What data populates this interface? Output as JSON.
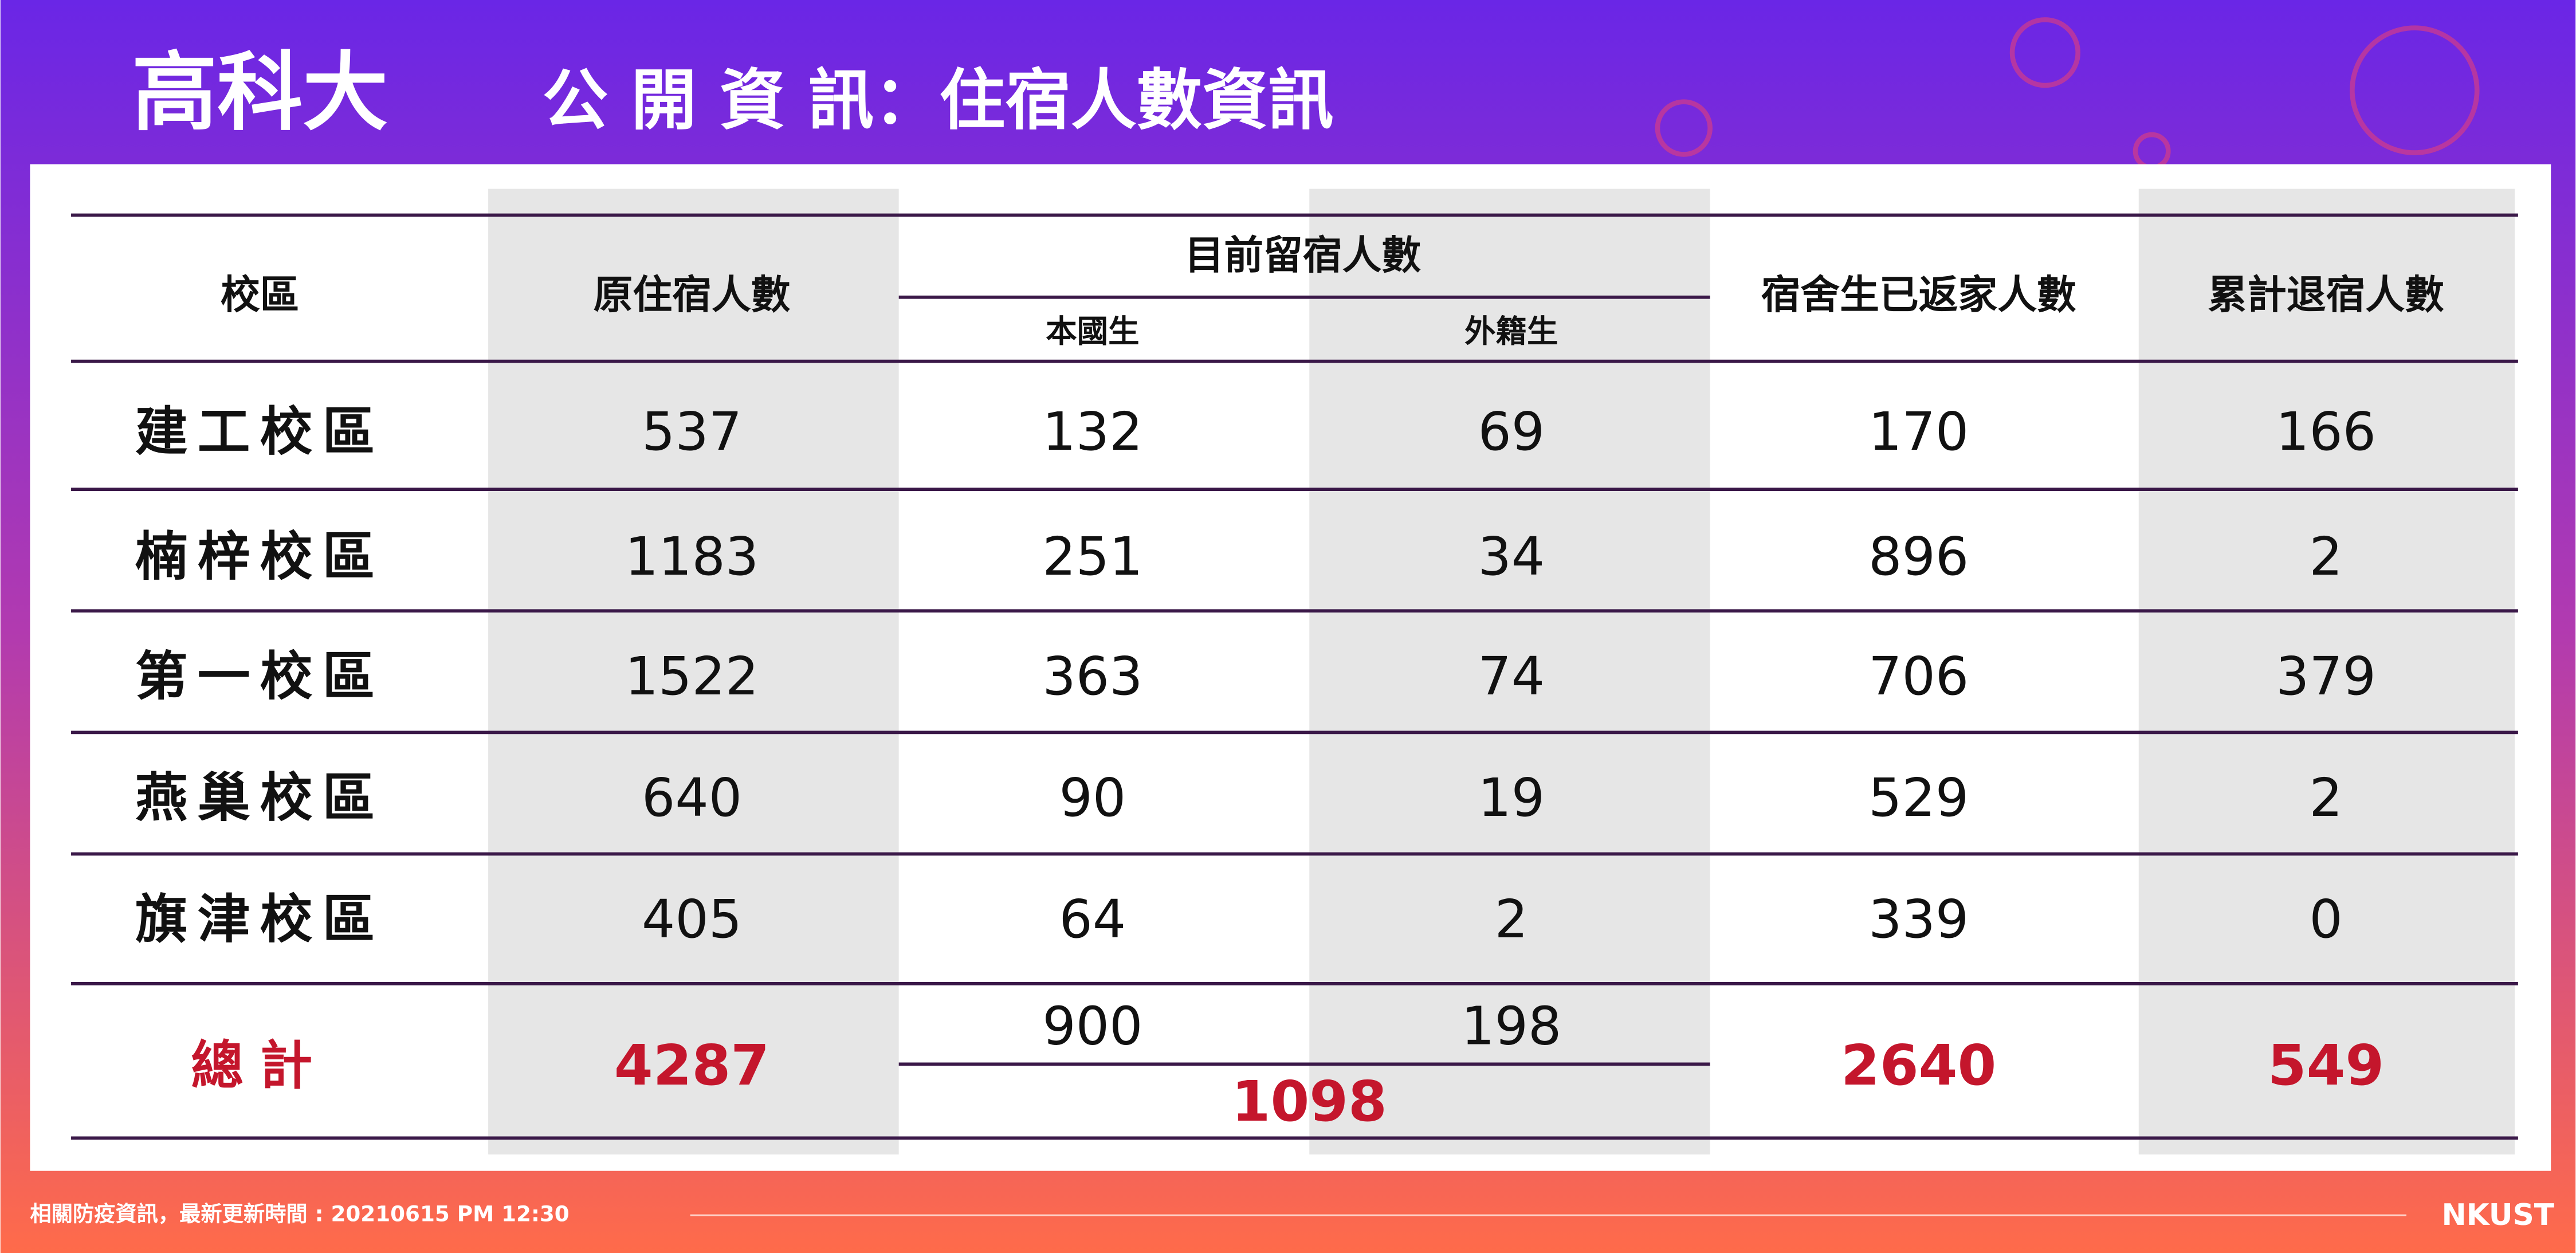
{
  "header": {
    "title_main": "高科大",
    "title_sub": "公 開 資 訊：住宿人數資訊"
  },
  "table": {
    "columns": [
      "校區",
      "原住宿人數",
      "目前留宿人數",
      "宿舍生已返家人數",
      "累計退宿人數"
    ],
    "subcolumns": [
      "本國生",
      "外籍生"
    ],
    "rows": [
      [
        "建工校區",
        537,
        132,
        69,
        170,
        166
      ],
      [
        "楠梓校區",
        1183,
        251,
        34,
        896,
        2
      ],
      [
        "第一校區",
        1522,
        363,
        74,
        706,
        379
      ],
      [
        "燕巢校區",
        640,
        90,
        19,
        529,
        2
      ],
      [
        "旗津校區",
        405,
        64,
        2,
        339,
        0
      ]
    ],
    "total": {
      "label": "總計",
      "original": 4287,
      "domestic": 900,
      "foreign": 198,
      "current": 1098,
      "returned": 2640,
      "withdrawn": 549
    }
  },
  "footer": {
    "text": "相關防疫資訊，最新更新時間 : 20210615 PM 12:30",
    "logo": "NKUST"
  }
}
